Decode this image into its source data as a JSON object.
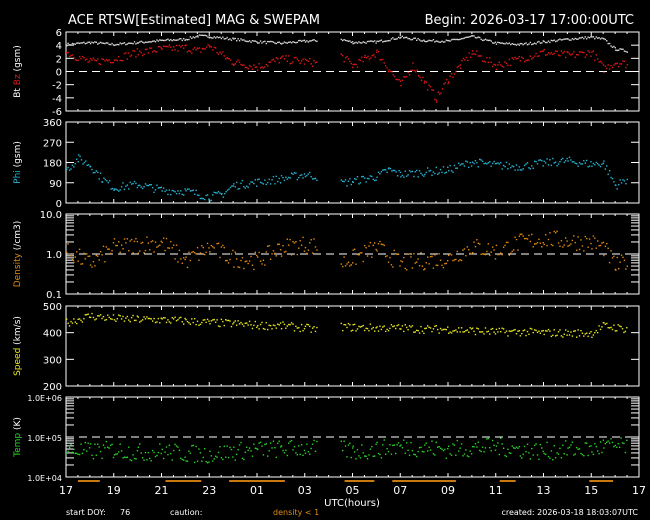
{
  "header": {
    "title": "ACE RTSW[Estimated] MAG & SWEPAM",
    "begin": "Begin: 2026-03-17 17:00:00UTC"
  },
  "footer": {
    "start_doy_label": "start DOY:",
    "start_doy": "76",
    "caution_label": "caution:",
    "caution_text": "density < 1",
    "created": "created: 2026-03-18 18:03:07UTC",
    "xlabel": "UTC(hours)"
  },
  "chart_data": {
    "type": "scatter",
    "x_start": "17:00",
    "x_span_hours": 24,
    "x_ticks": [
      "17",
      "19",
      "21",
      "23",
      "01",
      "03",
      "05",
      "07",
      "09",
      "11",
      "13",
      "15",
      "17"
    ],
    "density_caution_periods": [
      [
        "17:30",
        "18:25"
      ],
      [
        "21:10",
        "22:40"
      ],
      [
        "23:50",
        "02:10"
      ],
      [
        "04:40",
        "05:55"
      ],
      [
        "06:40",
        "09:20"
      ],
      [
        "11:10",
        "11:50"
      ],
      [
        "14:55",
        "15:55"
      ]
    ],
    "colors": {
      "bt": "#d8d8d8",
      "bz": "#e01818",
      "phi": "#28b4d4",
      "density": "#e08a10",
      "speed": "#e8e820",
      "temp": "#28d428",
      "caution": "#c87810"
    },
    "panels": [
      {
        "ylabel_parts": [
          {
            "text": "Bt",
            "color": "#ffffff"
          },
          {
            "text": "Bz",
            "color": "#e01818"
          },
          {
            "text": "(gsm)",
            "color": "#ffffff"
          }
        ],
        "scale": "linear",
        "ylim": [
          -6,
          6
        ],
        "ticks": [
          "6",
          "4",
          "2",
          "0",
          "-2",
          "-4",
          "-6"
        ],
        "tick_values": [
          6,
          4,
          2,
          0,
          -2,
          -4,
          -6
        ],
        "ref_line": 0,
        "series": [
          {
            "name": "Bt",
            "color": "bt",
            "points": [
              [
                "17:00",
                4.2
              ],
              [
                "18:00",
                4.5
              ],
              [
                "19:00",
                4.2
              ],
              [
                "20:00",
                4.5
              ],
              [
                "21:00",
                4.8
              ],
              [
                "22:00",
                5.0
              ],
              [
                "22:30",
                5.5
              ],
              [
                "23:00",
                5.4
              ],
              [
                "00:00",
                5.0
              ],
              [
                "01:00",
                4.6
              ],
              [
                "02:00",
                4.4
              ],
              [
                "03:00",
                4.7
              ],
              [
                "03:30",
                4.8
              ],
              null,
              [
                "04:30",
                5.0
              ],
              [
                "05:00",
                4.5
              ],
              [
                "06:00",
                4.6
              ],
              [
                "07:00",
                5.3
              ],
              [
                "08:00",
                4.8
              ],
              [
                "09:00",
                4.7
              ],
              [
                "10:00",
                5.4
              ],
              [
                "11:00",
                4.4
              ],
              [
                "12:00",
                4.2
              ],
              [
                "13:00",
                4.6
              ],
              [
                "14:00",
                5.0
              ],
              [
                "15:00",
                5.3
              ],
              [
                "15:30",
                5.0
              ],
              [
                "16:00",
                3.5
              ],
              [
                "16:30",
                3.2
              ]
            ]
          },
          {
            "name": "Bz",
            "color": "bz",
            "points": [
              [
                "17:00",
                3.0
              ],
              [
                "18:00",
                1.5
              ],
              [
                "19:00",
                2.0
              ],
              [
                "20:00",
                3.0
              ],
              [
                "21:00",
                3.5
              ],
              [
                "22:00",
                3.7
              ],
              [
                "22:30",
                3.2
              ],
              [
                "23:00",
                4.0
              ],
              [
                "23:45",
                2.0
              ],
              [
                "00:00",
                1.5
              ],
              [
                "01:00",
                0.8
              ],
              [
                "02:00",
                2.0
              ],
              [
                "03:00",
                1.6
              ],
              [
                "03:30",
                1.4
              ],
              null,
              [
                "04:30",
                2.5
              ],
              [
                "05:00",
                1.0
              ],
              [
                "05:30",
                2.0
              ],
              [
                "06:00",
                3.0
              ],
              [
                "06:30",
                0.5
              ],
              [
                "07:00",
                -2.0
              ],
              [
                "07:30",
                1.0
              ],
              [
                "08:00",
                -1.5
              ],
              [
                "08:30",
                -4.0
              ],
              [
                "09:00",
                -1.0
              ],
              [
                "09:30",
                1.0
              ],
              [
                "10:00",
                3.0
              ],
              [
                "11:00",
                1.0
              ],
              [
                "12:00",
                2.0
              ],
              [
                "13:00",
                3.0
              ],
              [
                "14:00",
                2.5
              ],
              [
                "15:00",
                3.0
              ],
              [
                "15:30",
                0.5
              ],
              [
                "16:00",
                1.5
              ],
              [
                "16:30",
                1.2
              ]
            ]
          }
        ]
      },
      {
        "ylabel_parts": [
          {
            "text": "Phi",
            "color": "#28b4d4"
          },
          {
            "text": "(gsm)",
            "color": "#ffffff"
          }
        ],
        "scale": "linear",
        "ylim": [
          0,
          360
        ],
        "ticks": [
          "360",
          "270",
          "180",
          "90",
          "0"
        ],
        "tick_values": [
          360,
          270,
          180,
          90,
          0
        ],
        "series": [
          {
            "name": "Phi",
            "color": "phi",
            "points": [
              [
                "17:00",
                150
              ],
              [
                "17:30",
                200
              ],
              [
                "18:00",
                170
              ],
              [
                "18:30",
                110
              ],
              [
                "19:00",
                70
              ],
              [
                "20:00",
                85
              ],
              [
                "21:00",
                60
              ],
              [
                "22:00",
                55
              ],
              [
                "23:00",
                30
              ],
              [
                "23:30",
                40
              ],
              [
                "00:00",
                80
              ],
              [
                "01:00",
                95
              ],
              [
                "02:00",
                110
              ],
              [
                "03:00",
                130
              ],
              [
                "03:30",
                120
              ],
              null,
              [
                "04:30",
                90
              ],
              [
                "05:00",
                100
              ],
              [
                "06:00",
                120
              ],
              [
                "06:30",
                150
              ],
              [
                "07:00",
                130
              ],
              [
                "08:00",
                140
              ],
              [
                "09:00",
                150
              ],
              [
                "10:00",
                185
              ],
              [
                "11:00",
                170
              ],
              [
                "12:00",
                165
              ],
              [
                "13:00",
                180
              ],
              [
                "14:00",
                190
              ],
              [
                "15:00",
                175
              ],
              [
                "15:30",
                180
              ],
              [
                "16:00",
                80
              ],
              [
                "16:30",
                110
              ]
            ]
          }
        ]
      },
      {
        "ylabel_parts": [
          {
            "text": "Density",
            "color": "#e08a10"
          },
          {
            "text": "(/cm3)",
            "color": "#ffffff"
          }
        ],
        "scale": "log",
        "ylim": [
          0.1,
          10
        ],
        "ticks": [
          "10.0",
          "1.0",
          "0.1"
        ],
        "tick_values": [
          10,
          1,
          0.1
        ],
        "ref_line": 1,
        "series": [
          {
            "name": "Density",
            "color": "density",
            "points": [
              [
                "17:00",
                1.2
              ],
              [
                "18:00",
                0.6
              ],
              [
                "19:00",
                1.5
              ],
              [
                "20:00",
                1.8
              ],
              [
                "21:00",
                2.0
              ],
              [
                "22:00",
                0.7
              ],
              [
                "23:00",
                1.5
              ],
              [
                "00:00",
                0.8
              ],
              [
                "01:00",
                0.7
              ],
              [
                "02:00",
                1.5
              ],
              [
                "03:00",
                1.8
              ],
              [
                "03:30",
                1.6
              ],
              null,
              [
                "04:30",
                0.6
              ],
              [
                "05:00",
                0.8
              ],
              [
                "06:00",
                1.5
              ],
              [
                "07:00",
                0.6
              ],
              [
                "08:00",
                0.7
              ],
              [
                "09:00",
                0.8
              ],
              [
                "10:00",
                1.6
              ],
              [
                "11:00",
                1.2
              ],
              [
                "12:00",
                2.0
              ],
              [
                "13:00",
                2.5
              ],
              [
                "14:00",
                2.2
              ],
              [
                "15:00",
                2.0
              ],
              [
                "15:30",
                1.5
              ],
              [
                "16:00",
                0.5
              ],
              [
                "16:30",
                0.7
              ]
            ]
          }
        ]
      },
      {
        "ylabel_parts": [
          {
            "text": "Speed",
            "color": "#e8e820"
          },
          {
            "text": "(km/s)",
            "color": "#ffffff"
          }
        ],
        "scale": "linear",
        "ylim": [
          200,
          500
        ],
        "ticks": [
          "500",
          "400",
          "300",
          "200"
        ],
        "tick_values": [
          500,
          400,
          300,
          200
        ],
        "series": [
          {
            "name": "Speed",
            "color": "speed",
            "points": [
              [
                "17:00",
                440
              ],
              [
                "18:00",
                465
              ],
              [
                "19:00",
                455
              ],
              [
                "20:00",
                452
              ],
              [
                "21:00",
                450
              ],
              [
                "22:00",
                446
              ],
              [
                "23:00",
                440
              ],
              [
                "00:00",
                436
              ],
              [
                "01:00",
                430
              ],
              [
                "02:00",
                428
              ],
              [
                "03:00",
                420
              ],
              [
                "03:30",
                412
              ],
              null,
              [
                "04:30",
                425
              ],
              [
                "05:00",
                422
              ],
              [
                "06:00",
                420
              ],
              [
                "07:00",
                420
              ],
              [
                "08:00",
                415
              ],
              [
                "09:00",
                415
              ],
              [
                "10:00",
                410
              ],
              [
                "11:00",
                405
              ],
              [
                "12:00",
                405
              ],
              [
                "13:00",
                402
              ],
              [
                "14:00",
                400
              ],
              [
                "15:00",
                400
              ],
              [
                "15:30",
                428
              ],
              [
                "16:30",
                415
              ]
            ]
          }
        ]
      },
      {
        "ylabel_parts": [
          {
            "text": "Temp",
            "color": "#28d428"
          },
          {
            "text": "(K)",
            "color": "#ffffff"
          }
        ],
        "scale": "log",
        "ylim": [
          10000,
          1000000
        ],
        "ticks": [
          "1.0E+06",
          "1.0E+05",
          "1.0E+04"
        ],
        "tick_values": [
          1000000,
          100000,
          10000
        ],
        "ref_line": 100000,
        "series": [
          {
            "name": "Temp",
            "color": "temp",
            "points": [
              [
                "17:00",
                50000
              ],
              [
                "18:00",
                45000
              ],
              [
                "19:00",
                50000
              ],
              [
                "20:00",
                42000
              ],
              [
                "21:00",
                45000
              ],
              [
                "22:00",
                40000
              ],
              [
                "23:00",
                38000
              ],
              [
                "00:00",
                45000
              ],
              [
                "01:00",
                50000
              ],
              [
                "02:00",
                52000
              ],
              [
                "03:00",
                55000
              ],
              [
                "03:30",
                52000
              ],
              null,
              [
                "04:30",
                50000
              ],
              [
                "05:00",
                45000
              ],
              [
                "06:00",
                50000
              ],
              [
                "07:00",
                60000
              ],
              [
                "08:00",
                55000
              ],
              [
                "09:00",
                50000
              ],
              [
                "10:00",
                55000
              ],
              [
                "11:00",
                60000
              ],
              [
                "12:00",
                50000
              ],
              [
                "13:00",
                45000
              ],
              [
                "14:00",
                50000
              ],
              [
                "15:00",
                50000
              ],
              [
                "15:30",
                60000
              ],
              [
                "16:30",
                60000
              ]
            ]
          }
        ]
      }
    ]
  }
}
